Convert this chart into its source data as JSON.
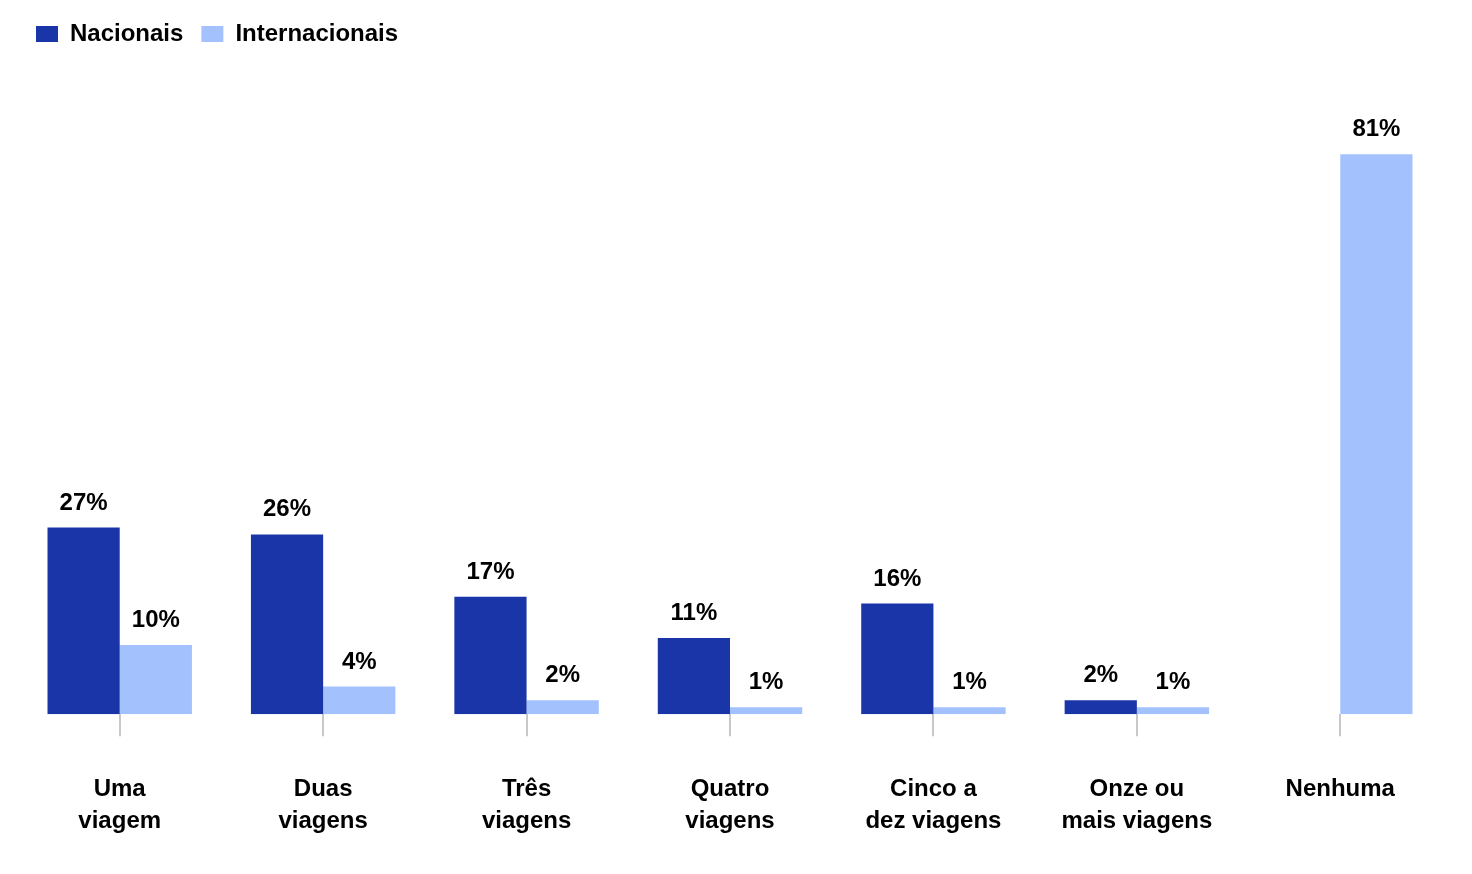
{
  "chart_data": {
    "type": "bar",
    "categories": [
      "Uma viagem",
      "Duas viagens",
      "Três viagens",
      "Quatro viagens",
      "Cinco a dez viagens",
      "Onze ou mais viagens",
      "Nenhuma"
    ],
    "series": [
      {
        "name": "Nacionais",
        "color": "#1a35a8",
        "values": [
          27,
          26,
          17,
          11,
          16,
          2,
          null
        ],
        "value_labels": [
          "27%",
          "26%",
          "17%",
          "11%",
          "16%",
          "2%",
          null
        ]
      },
      {
        "name": "Internacionais",
        "color": "#a3c1fd",
        "values": [
          10,
          4,
          2,
          1,
          1,
          1,
          81
        ],
        "value_labels": [
          "10%",
          "4%",
          "2%",
          "1%",
          "1%",
          "1%",
          "81%"
        ]
      }
    ],
    "legend": "top left"
  }
}
